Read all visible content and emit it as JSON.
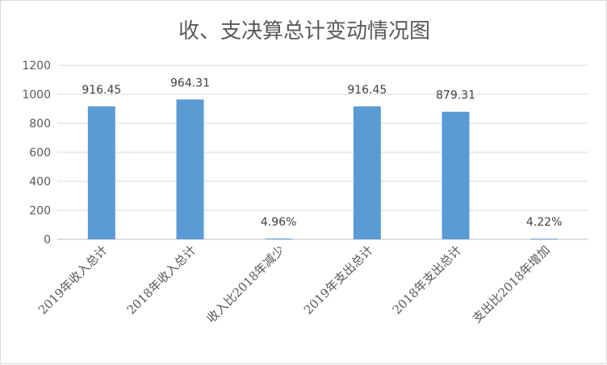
{
  "chart_data": {
    "type": "bar",
    "title": "收、支决算总计变动情况图",
    "categories": [
      "2019年收入总计",
      "2018年收入总计",
      "收入比2018年减少",
      "2019年支出总计",
      "2018年支出总计",
      "支出比2018年增加"
    ],
    "values": [
      916.45,
      964.31,
      4.96,
      916.45,
      879.31,
      4.22
    ],
    "data_labels": [
      "916.45",
      "964.31",
      "4.96%",
      "916.45",
      "879.31",
      "4.22%"
    ],
    "yticks": [
      "0",
      "200",
      "400",
      "600",
      "800",
      "1000",
      "1200"
    ],
    "ylim": [
      0,
      1200
    ],
    "grid": true,
    "bar_color": "#5B9BD5"
  }
}
